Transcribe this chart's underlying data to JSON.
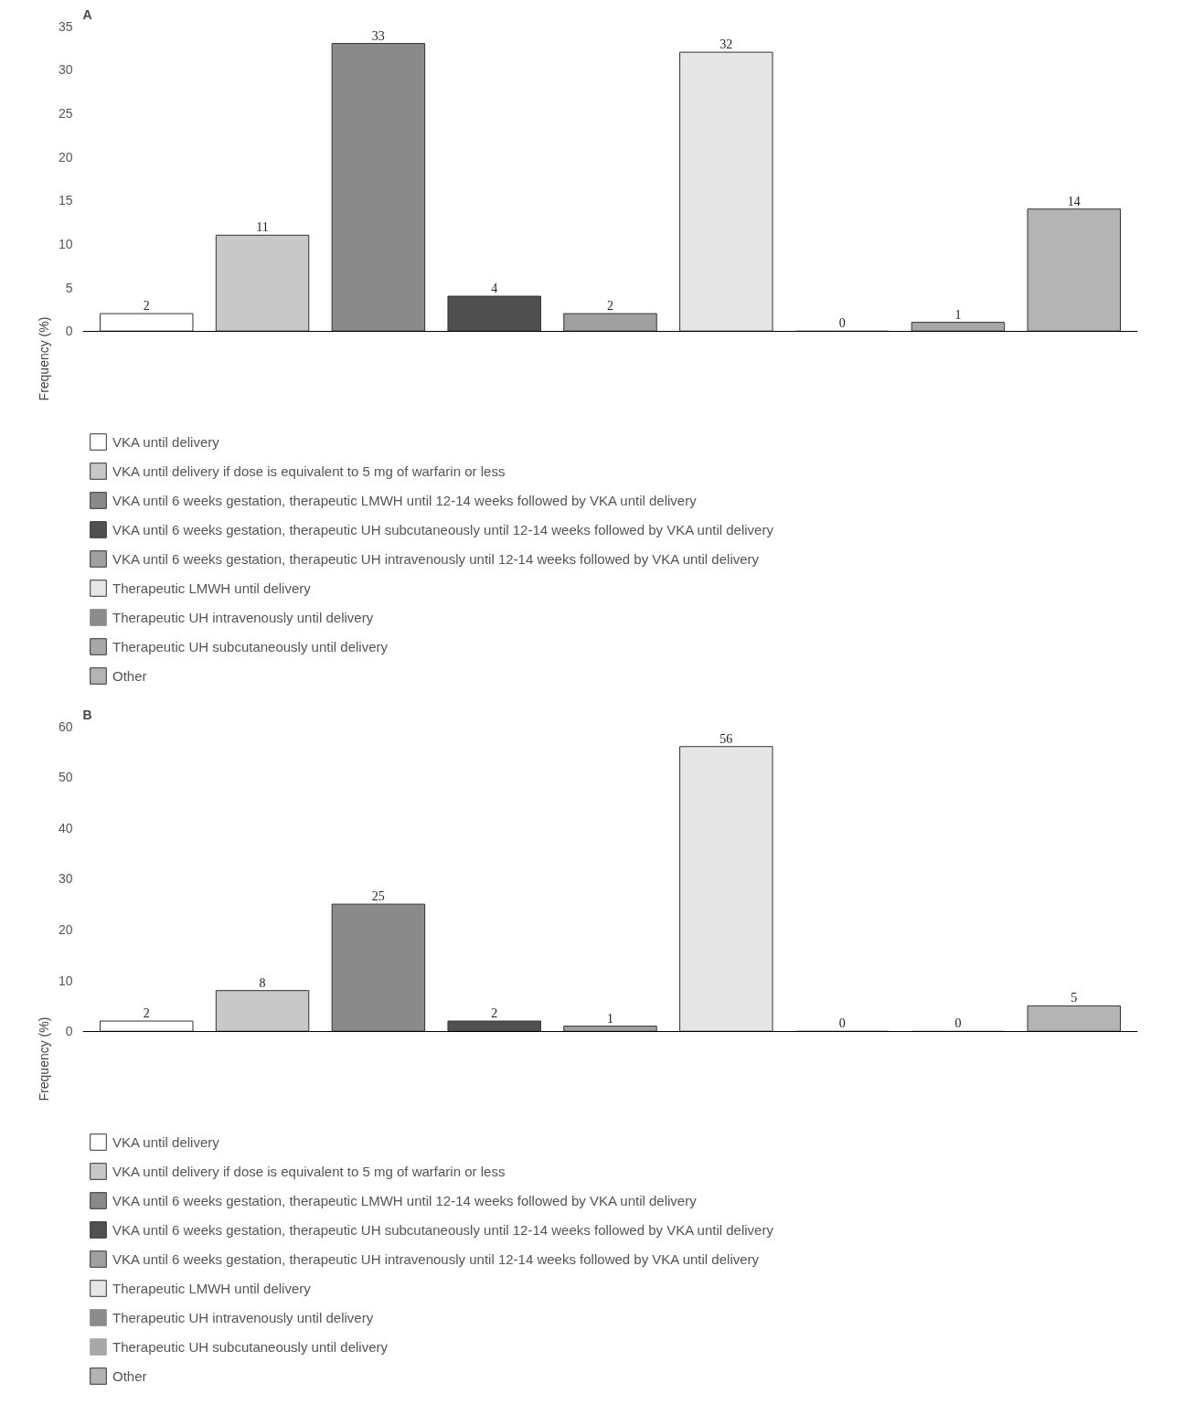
{
  "chart_data": [
    {
      "type": "bar",
      "title": "A",
      "ylabel": "Frequency (%)",
      "categories": [
        null,
        null,
        null,
        null,
        null,
        null,
        null,
        null,
        null
      ],
      "series": [
        {
          "name": "VKA until delivery",
          "color": "#ffffff",
          "values": [
            2,
            null,
            null,
            null,
            null,
            null,
            null,
            null,
            null
          ]
        },
        {
          "name": "VKA until delivery if dose is equivalent to 5 mg of warfarin or less",
          "color": "#c8c8c8",
          "values": [
            null,
            11,
            null,
            null,
            null,
            null,
            null,
            null,
            null
          ]
        },
        {
          "name": "VKA until 6 weeks gestation, therapeutic LMWH until 12-14 weeks followed by VKA until delivery",
          "color": "#8a8a8a",
          "values": [
            null,
            null,
            33,
            null,
            null,
            null,
            null,
            null,
            null
          ]
        },
        {
          "name": "VKA until 6 weeks gestation, therapeutic UH subcutaneously until 12-14 weeks followed by VKA until delivery",
          "color": "#505050",
          "values": [
            null,
            null,
            null,
            4,
            null,
            null,
            null,
            null,
            null
          ]
        },
        {
          "name": "VKA until 6 weeks gestation, therapeutic UH intravenously until 12-14 weeks followed by VKA until delivery",
          "color": "#a0a0a0",
          "values": [
            null,
            null,
            null,
            null,
            2,
            null,
            null,
            null,
            null
          ]
        },
        {
          "name": "Therapeutic LMWH until delivery",
          "color": "#e6e6e6",
          "values": [
            null,
            null,
            null,
            null,
            null,
            32,
            null,
            null,
            null
          ]
        },
        {
          "name": "Therapeutic UH intravenously until delivery",
          "color": "#8c8c8c",
          "values": [
            null,
            null,
            null,
            null,
            null,
            null,
            0,
            null,
            null
          ]
        },
        {
          "name": "Therapeutic UH subcutaneously until delivery",
          "color": "#a8a8a8",
          "values": [
            null,
            null,
            null,
            null,
            null,
            null,
            null,
            1,
            null
          ]
        },
        {
          "name": "Other",
          "color": "#b4b4b4",
          "values": [
            null,
            null,
            null,
            null,
            null,
            null,
            null,
            null,
            14
          ]
        }
      ],
      "ylim": [
        0,
        35
      ],
      "yticks": [
        0,
        5,
        10,
        15,
        20,
        25,
        30,
        35
      ],
      "data_labels": true,
      "tick_labels": "y",
      "legend": "bottom",
      "grid": false
    },
    {
      "type": "bar",
      "title": "B",
      "ylabel": "Frequency (%)",
      "categories": [
        null,
        null,
        null,
        null,
        null,
        null,
        null,
        null,
        null
      ],
      "series": [
        {
          "name": "VKA until delivery",
          "color": "#ffffff",
          "values": [
            2,
            null,
            null,
            null,
            null,
            null,
            null,
            null,
            null
          ]
        },
        {
          "name": "VKA until delivery if dose is equivalent to 5 mg of warfarin or less",
          "color": "#c8c8c8",
          "values": [
            null,
            8,
            null,
            null,
            null,
            null,
            null,
            null,
            null
          ]
        },
        {
          "name": "VKA until 6 weeks gestation, therapeutic LMWH until 12-14 weeks followed by VKA until delivery",
          "color": "#8a8a8a",
          "values": [
            null,
            null,
            25,
            null,
            null,
            null,
            null,
            null,
            null
          ]
        },
        {
          "name": "VKA until 6 weeks gestation, therapeutic UH subcutaneously until 12-14 weeks followed by VKA until delivery",
          "color": "#505050",
          "values": [
            null,
            null,
            null,
            2,
            null,
            null,
            null,
            null,
            null
          ]
        },
        {
          "name": "VKA until 6 weeks gestation, therapeutic UH intravenously until 12-14 weeks followed by VKA until delivery",
          "color": "#a0a0a0",
          "values": [
            null,
            null,
            null,
            null,
            1,
            null,
            null,
            null,
            null
          ]
        },
        {
          "name": "Therapeutic LMWH until delivery",
          "color": "#e6e6e6",
          "values": [
            null,
            null,
            null,
            null,
            null,
            56,
            null,
            null,
            null
          ]
        },
        {
          "name": "Therapeutic UH intravenously until delivery",
          "color": "#8c8c8c",
          "values": [
            null,
            null,
            null,
            null,
            null,
            null,
            0,
            null,
            null
          ]
        },
        {
          "name": "Therapeutic UH subcutaneously until delivery",
          "color": "#a8a8a8",
          "values": [
            null,
            null,
            null,
            null,
            null,
            null,
            null,
            0,
            null
          ]
        },
        {
          "name": "Other",
          "color": "#b4b4b4",
          "values": [
            null,
            null,
            null,
            null,
            null,
            null,
            null,
            null,
            5
          ]
        }
      ],
      "ylim": [
        0,
        60
      ],
      "yticks": [
        0,
        10,
        20,
        30,
        40,
        50,
        60
      ],
      "data_labels": true,
      "tick_labels": "y",
      "legend": "bottom",
      "grid": false
    }
  ]
}
